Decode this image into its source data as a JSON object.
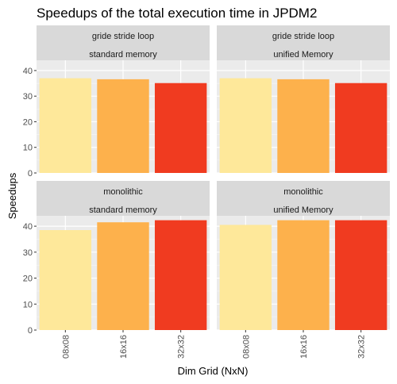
{
  "chart_data": {
    "type": "bar",
    "title": "Speedups of the total execution time in JPDM2",
    "xlabel": "Dim Grid (NxN)",
    "ylabel": "Speedups",
    "categories": [
      "08x08",
      "16x16",
      "32x32"
    ],
    "colors": [
      "#FEE89A",
      "#FDB14C",
      "#F03B20"
    ],
    "ylim": [
      0,
      44
    ],
    "yticks": [
      0,
      10,
      20,
      30,
      40
    ],
    "grid": true,
    "panels": [
      {
        "strip": [
          "gride stride loop",
          "standard memory"
        ],
        "values": [
          37.0,
          36.6,
          35.1
        ]
      },
      {
        "strip": [
          "gride stride loop",
          "unified Memory"
        ],
        "values": [
          37.0,
          36.6,
          35.1
        ]
      },
      {
        "strip": [
          "monolithic",
          "standard memory"
        ],
        "values": [
          38.5,
          41.5,
          42.3
        ]
      },
      {
        "strip": [
          "monolithic",
          "unified Memory"
        ],
        "values": [
          40.5,
          42.3,
          42.3
        ]
      }
    ]
  }
}
